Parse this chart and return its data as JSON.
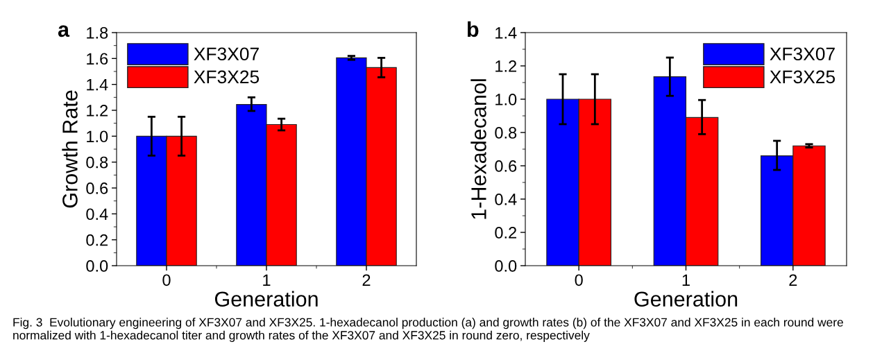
{
  "chart_data": [
    {
      "type": "bar",
      "xlabel": "Generation",
      "ylabel": "Growth Rate",
      "categories": [
        "0",
        "1",
        "2"
      ],
      "ylim": [
        0,
        1.8
      ],
      "yticks": [
        {
          "value": 0,
          "label": "0.0"
        },
        {
          "value": 0.2,
          "label": "0.2"
        },
        {
          "value": 0.4,
          "label": "0.4"
        },
        {
          "value": 0.6,
          "label": "0.6"
        },
        {
          "value": 0.8,
          "label": "0.8"
        },
        {
          "value": 1.0,
          "label": "1.0"
        },
        {
          "value": 1.2,
          "label": "1.2"
        },
        {
          "value": 1.4,
          "label": "1.4"
        },
        {
          "value": 1.6,
          "label": "1.6"
        },
        {
          "value": 1.8,
          "label": "1.8"
        }
      ],
      "legend": "top left",
      "grid": false,
      "series": [
        {
          "name": "XF3X07",
          "color": "#0000ff",
          "values": [
            1.0,
            1.245,
            1.605
          ],
          "errors": [
            [
              0.85,
              1.15
            ],
            [
              1.195,
              1.3
            ],
            [
              1.59,
              1.62
            ]
          ]
        },
        {
          "name": "XF3X25",
          "color": "#ff0000",
          "values": [
            1.0,
            1.09,
            1.53
          ],
          "errors": [
            [
              0.85,
              1.15
            ],
            [
              1.045,
              1.135
            ],
            [
              1.455,
              1.605
            ]
          ]
        }
      ],
      "annotations": [
        "a",
        "Fig. 3  Evolutionary engineering of XF3X07 and XF3X25. 1-hexadecanol production (a) and growth rates (b) of the XF3X07 and XF3X25 in each round were normalized with 1-hexadecanol titer and growth rates of the XF3X07 and XF3X25 in round zero, respectively"
      ]
    },
    {
      "type": "bar",
      "xlabel": "Generation",
      "ylabel": "1-Hexadecanol",
      "categories": [
        "0",
        "1",
        "2"
      ],
      "ylim": [
        0,
        1.4
      ],
      "yticks": [
        {
          "value": 0,
          "label": "0.0"
        },
        {
          "value": 0.2,
          "label": "0.2"
        },
        {
          "value": 0.4,
          "label": "0.4"
        },
        {
          "value": 0.6,
          "label": "0.6"
        },
        {
          "value": 0.8,
          "label": "0.8"
        },
        {
          "value": 1.0,
          "label": "1.0"
        },
        {
          "value": 1.2,
          "label": "1.2"
        },
        {
          "value": 1.4,
          "label": "1.4"
        }
      ],
      "legend": "top right",
      "grid": false,
      "series": [
        {
          "name": "XF3X07",
          "color": "#0000ff",
          "values": [
            1.0,
            1.135,
            0.66
          ],
          "errors": [
            [
              0.85,
              1.15
            ],
            [
              1.02,
              1.25
            ],
            [
              0.575,
              0.75
            ]
          ]
        },
        {
          "name": "XF3X25",
          "color": "#ff0000",
          "values": [
            1.0,
            0.89,
            0.72
          ],
          "errors": [
            [
              0.85,
              1.15
            ],
            [
              0.79,
              0.995
            ],
            [
              0.71,
              0.73
            ]
          ]
        }
      ],
      "annotations": [
        "b"
      ]
    }
  ]
}
